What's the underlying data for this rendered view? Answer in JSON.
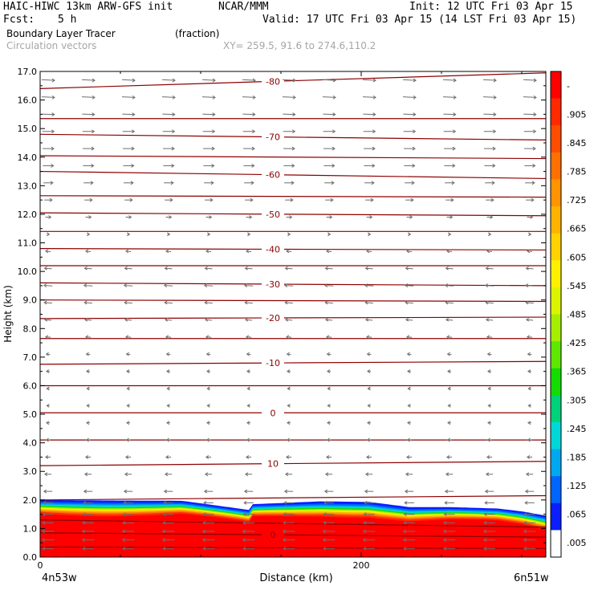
{
  "header": {
    "model_title": "HAIC-HIWC 13km ARW-GFS init",
    "org": "NCAR/MMM",
    "init": "Init: 12 UTC Fri 03 Apr 15",
    "fcst_label": "Fcst:",
    "fcst_value": "5 h",
    "valid": "Valid: 17 UTC Fri 03 Apr 15 (14 LST Fri 03 Apr 15)",
    "field_name": "Boundary Layer Tracer",
    "field_units": "(fraction)",
    "vector_label": "Circulation vectors",
    "xy_label": "XY= 259.5, 91.6 to 274.6,110.2"
  },
  "chart_data": {
    "type": "heatmap",
    "title": "",
    "xlabel": "Distance (km)",
    "ylabel": "Height (km)",
    "xlim": [
      0,
      315
    ],
    "ylim": [
      0,
      17
    ],
    "x_ticks": [
      0,
      200
    ],
    "x_tick_labels": [
      "0",
      "200"
    ],
    "y_ticks": [
      0,
      1,
      2,
      3,
      4,
      5,
      6,
      7,
      8,
      9,
      10,
      11,
      12,
      13,
      14,
      15,
      16,
      17
    ],
    "y_tick_labels": [
      "0.0",
      "1.0",
      "2.0",
      "3.0",
      "4.0",
      "5.0",
      "6.0",
      "7.0",
      "8.0",
      "9.0",
      "10.0",
      "11.0",
      "12.0",
      "13.0",
      "14.0",
      "15.0",
      "16.0",
      "17.0"
    ],
    "x_endpoint_labels": [
      "4n53w",
      "6n51w"
    ],
    "colorbar": {
      "labels": [
        "-",
        ".905",
        ".845",
        ".785",
        ".725",
        ".665",
        ".605",
        ".545",
        ".485",
        ".425",
        ".365",
        ".305",
        ".245",
        ".185",
        ".125",
        ".065",
        ".005"
      ],
      "colors": [
        "#ff0000",
        "#ff2a00",
        "#ff4d00",
        "#ff7000",
        "#ff9400",
        "#ffb300",
        "#ffd200",
        "#fff000",
        "#dcf400",
        "#a6ee00",
        "#5ee800",
        "#14dc00",
        "#00d27a",
        "#00d8d8",
        "#00a8f0",
        "#0064ff",
        "#0a1eff",
        "#ffffff"
      ]
    },
    "bl_tracer_top": {
      "x": [
        0,
        45,
        88,
        95,
        130,
        132,
        175,
        205,
        230,
        255,
        285,
        300,
        315
      ],
      "height": [
        2.0,
        1.98,
        1.97,
        1.92,
        1.65,
        1.85,
        1.95,
        1.93,
        1.75,
        1.75,
        1.7,
        1.6,
        1.45
      ]
    },
    "temperature_contours": [
      {
        "label": "-80",
        "x": [
          0,
          315
        ],
        "height": [
          16.4,
          16.95
        ]
      },
      {
        "label": "",
        "x": [
          0,
          315
        ],
        "height": [
          15.35,
          15.35
        ]
      },
      {
        "label": "-70",
        "x": [
          0,
          315
        ],
        "height": [
          14.8,
          14.6
        ]
      },
      {
        "label": "",
        "x": [
          0,
          315
        ],
        "height": [
          14.05,
          13.95
        ]
      },
      {
        "label": "-60",
        "x": [
          0,
          315
        ],
        "height": [
          13.5,
          13.25
        ]
      },
      {
        "label": "",
        "x": [
          0,
          315
        ],
        "height": [
          12.65,
          12.6
        ]
      },
      {
        "label": "-50",
        "x": [
          0,
          315
        ],
        "height": [
          12.05,
          11.95
        ]
      },
      {
        "label": "",
        "x": [
          0,
          315
        ],
        "height": [
          11.4,
          11.4
        ]
      },
      {
        "label": "-40",
        "x": [
          0,
          315
        ],
        "height": [
          10.8,
          10.75
        ]
      },
      {
        "label": "",
        "x": [
          0,
          315
        ],
        "height": [
          10.2,
          10.2
        ]
      },
      {
        "label": "-30",
        "x": [
          0,
          315
        ],
        "height": [
          9.6,
          9.5
        ]
      },
      {
        "label": "",
        "x": [
          0,
          315
        ],
        "height": [
          9.0,
          8.95
        ]
      },
      {
        "label": "-20",
        "x": [
          0,
          315
        ],
        "height": [
          8.35,
          8.4
        ]
      },
      {
        "label": "",
        "x": [
          0,
          315
        ],
        "height": [
          7.65,
          7.65
        ]
      },
      {
        "label": "-10",
        "x": [
          0,
          315
        ],
        "height": [
          6.75,
          6.85
        ]
      },
      {
        "label": "",
        "x": [
          0,
          315
        ],
        "height": [
          6.0,
          6.0
        ]
      },
      {
        "label": "0",
        "x": [
          0,
          315
        ],
        "height": [
          5.05,
          5.05
        ]
      },
      {
        "label": "",
        "x": [
          0,
          315
        ],
        "height": [
          4.1,
          4.1
        ]
      },
      {
        "label": "10",
        "x": [
          0,
          315
        ],
        "height": [
          3.2,
          3.35
        ]
      },
      {
        "label": "",
        "x": [
          0,
          315
        ],
        "height": [
          2.0,
          2.15
        ]
      },
      {
        "label": "",
        "x": [
          0,
          315
        ],
        "height": [
          1.3,
          1.05
        ]
      },
      {
        "label": "0",
        "x": [
          0,
          315
        ],
        "height": [
          0.85,
          0.7
        ]
      },
      {
        "label": "",
        "x": [
          0,
          315
        ],
        "height": [
          0.35,
          0.3
        ]
      }
    ],
    "circulation_vectors": {
      "rows": [
        {
          "height": 16.7,
          "u": 1.0,
          "w": -0.06
        },
        {
          "height": 16.1,
          "u": 1.0,
          "w": -0.05
        },
        {
          "height": 15.5,
          "u": 0.95,
          "w": -0.03
        },
        {
          "height": 14.9,
          "u": 0.9,
          "w": 0
        },
        {
          "height": 14.3,
          "u": 0.85,
          "w": 0
        },
        {
          "height": 13.7,
          "u": 0.8,
          "w": 0
        },
        {
          "height": 13.1,
          "u": 0.7,
          "w": 0
        },
        {
          "height": 12.5,
          "u": 0.55,
          "w": 0
        },
        {
          "height": 11.9,
          "u": 0.35,
          "w": 0
        },
        {
          "height": 11.3,
          "u": 0.05,
          "w": 0
        },
        {
          "height": 10.7,
          "u": -0.3,
          "w": 0.05
        },
        {
          "height": 10.1,
          "u": -0.5,
          "w": 0.05
        },
        {
          "height": 9.5,
          "u": -0.6,
          "w": 0.05
        },
        {
          "height": 8.9,
          "u": -0.55,
          "w": 0.05
        },
        {
          "height": 8.3,
          "u": -0.45,
          "w": 0.05
        },
        {
          "height": 7.7,
          "u": -0.3,
          "w": 0.03
        },
        {
          "height": 7.1,
          "u": -0.2,
          "w": 0.03
        },
        {
          "height": 6.5,
          "u": -0.15,
          "w": 0.02
        },
        {
          "height": 5.9,
          "u": -0.1,
          "w": 0
        },
        {
          "height": 5.3,
          "u": -0.1,
          "w": 0
        },
        {
          "height": 4.7,
          "u": -0.15,
          "w": 0
        },
        {
          "height": 4.1,
          "u": -0.2,
          "w": 0
        },
        {
          "height": 3.5,
          "u": -0.3,
          "w": 0
        },
        {
          "height": 2.9,
          "u": -0.45,
          "w": 0
        },
        {
          "height": 2.3,
          "u": -0.6,
          "w": 0
        },
        {
          "height": 1.9,
          "u": -0.7,
          "w": 0
        },
        {
          "height": 1.5,
          "u": -0.8,
          "w": 0
        },
        {
          "height": 1.2,
          "u": -0.85,
          "w": 0
        },
        {
          "height": 0.9,
          "u": -0.9,
          "w": 0
        },
        {
          "height": 0.6,
          "u": -0.9,
          "w": 0
        },
        {
          "height": 0.3,
          "u": -0.85,
          "w": 0
        }
      ],
      "x_positions": [
        5,
        30,
        55,
        80,
        105,
        130,
        155,
        180,
        205,
        230,
        255,
        280,
        305
      ]
    },
    "grid": false,
    "legend": "right colorbar"
  }
}
